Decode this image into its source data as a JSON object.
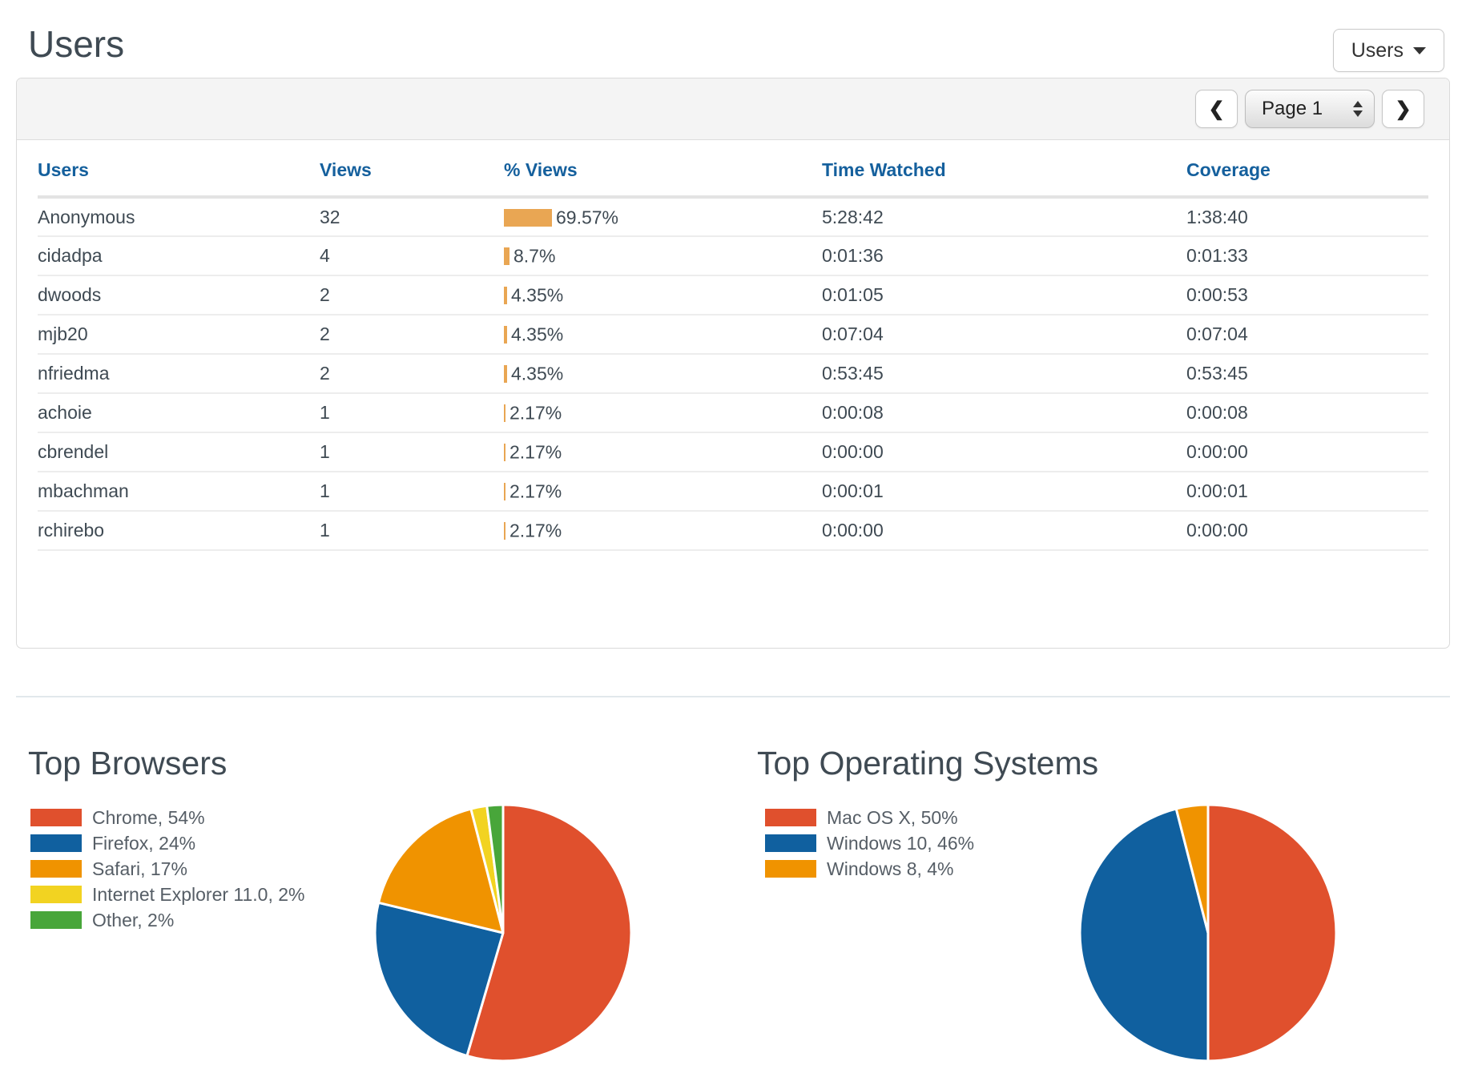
{
  "page": {
    "title": "Users",
    "report_type_label": "Users"
  },
  "toolbar": {
    "prev_icon": "❮",
    "next_icon": "❯",
    "page_select_value": "Page 1"
  },
  "table": {
    "columns": [
      "Users",
      "Views",
      "% Views",
      "Time Watched",
      "Coverage"
    ],
    "rows": [
      {
        "user": "Anonymous",
        "views": "32",
        "pct_display": "69.57%",
        "pct_value": 69.57,
        "time_watched": "5:28:42",
        "coverage": "1:38:40"
      },
      {
        "user": "cidadpa",
        "views": "4",
        "pct_display": "8.7%",
        "pct_value": 8.7,
        "time_watched": "0:01:36",
        "coverage": "0:01:33"
      },
      {
        "user": "dwoods",
        "views": "2",
        "pct_display": "4.35%",
        "pct_value": 4.35,
        "time_watched": "0:01:05",
        "coverage": "0:00:53"
      },
      {
        "user": "mjb20",
        "views": "2",
        "pct_display": "4.35%",
        "pct_value": 4.35,
        "time_watched": "0:07:04",
        "coverage": "0:07:04"
      },
      {
        "user": "nfriedma",
        "views": "2",
        "pct_display": "4.35%",
        "pct_value": 4.35,
        "time_watched": "0:53:45",
        "coverage": "0:53:45"
      },
      {
        "user": "achoie",
        "views": "1",
        "pct_display": "2.17%",
        "pct_value": 2.17,
        "time_watched": "0:00:08",
        "coverage": "0:00:08"
      },
      {
        "user": "cbrendel",
        "views": "1",
        "pct_display": "2.17%",
        "pct_value": 2.17,
        "time_watched": "0:00:00",
        "coverage": "0:00:00"
      },
      {
        "user": "mbachman",
        "views": "1",
        "pct_display": "2.17%",
        "pct_value": 2.17,
        "time_watched": "0:00:01",
        "coverage": "0:00:01"
      },
      {
        "user": "rchirebo",
        "views": "1",
        "pct_display": "2.17%",
        "pct_value": 2.17,
        "time_watched": "0:00:00",
        "coverage": "0:00:00"
      }
    ]
  },
  "colors": {
    "pct_bar_orange": "#e9a653",
    "header_link_blue": "#15609d",
    "text_dark": "#3f4a53"
  },
  "chart_data": [
    {
      "type": "pie",
      "title": "Top Browsers",
      "labels": [
        "Chrome",
        "Firefox",
        "Safari",
        "Internet Explorer 11.0",
        "Other"
      ],
      "values": [
        54,
        24,
        17,
        2,
        2
      ],
      "colors": [
        "#e0502d",
        "#10609f",
        "#f09300",
        "#f2d321",
        "#48a63a"
      ],
      "legend_position": "left",
      "start_angle_deg": -90,
      "direction": "clockwise"
    },
    {
      "type": "pie",
      "title": "Top Operating Systems",
      "labels": [
        "Mac OS X",
        "Windows 10",
        "Windows 8"
      ],
      "values": [
        50,
        46,
        4
      ],
      "colors": [
        "#e0502d",
        "#10609f",
        "#f09300"
      ],
      "legend_position": "left",
      "start_angle_deg": -90,
      "direction": "clockwise"
    }
  ]
}
